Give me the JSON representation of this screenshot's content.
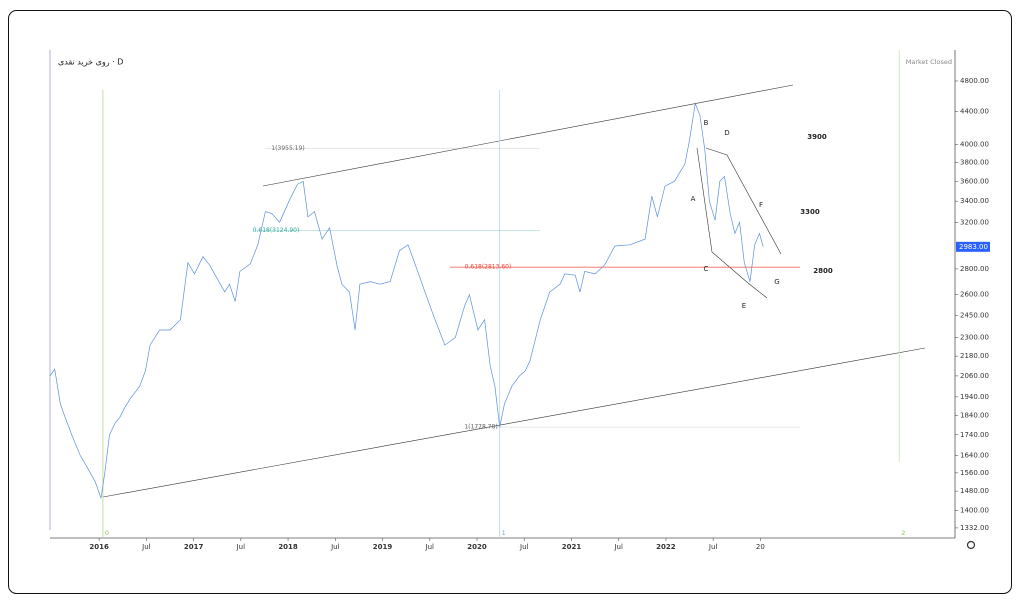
{
  "chart_data": {
    "type": "line",
    "title": "روی خرید نقدی · D",
    "status": "Market Closed",
    "log_scale": true,
    "grid": false,
    "xlim": [
      2015.48,
      2025.06
    ],
    "ylim": [
      1294,
      5246
    ],
    "xticks": [
      2016,
      {
        "value": 2016.5,
        "label": "Jul"
      },
      2017,
      {
        "value": 2017.5,
        "label": "Jul"
      },
      2018,
      {
        "value": 2018.5,
        "label": "Jul"
      },
      2019,
      {
        "value": 2019.5,
        "label": "Jul"
      },
      2020,
      {
        "value": 2020.5,
        "label": "Jul"
      },
      2021,
      {
        "value": 2021.5,
        "label": "Jul"
      },
      2022,
      {
        "value": 2022.5,
        "label": "Jul"
      },
      {
        "value": 2023,
        "label": "20"
      }
    ],
    "yticks": [
      {
        "value": 4800,
        "label": "4800.00"
      },
      {
        "value": 4400,
        "label": "4400.00"
      },
      {
        "value": 4000,
        "label": "4000.00"
      },
      {
        "value": 3800,
        "label": "3800.00"
      },
      {
        "value": 3600,
        "label": "3600.00"
      },
      {
        "value": 3400,
        "label": "3400.00"
      },
      {
        "value": 3200,
        "label": "3200.00"
      },
      {
        "value": 2800,
        "label": "2800.00"
      },
      {
        "value": 2600,
        "label": "2600.00"
      },
      {
        "value": 2450,
        "label": "2450.00"
      },
      {
        "value": 2300,
        "label": "2300.00"
      },
      {
        "value": 2180,
        "label": "2180.00"
      },
      {
        "value": 2060,
        "label": "2060.00"
      },
      {
        "value": 1940,
        "label": "1940.00"
      },
      {
        "value": 1840,
        "label": "1840.00"
      },
      {
        "value": 1740,
        "label": "1740.00"
      },
      {
        "value": 1640,
        "label": "1640.00"
      },
      {
        "value": 1560,
        "label": "1560.00"
      },
      {
        "value": 1480,
        "label": "1480.00"
      },
      {
        "value": 1400,
        "label": "1400.00"
      },
      {
        "value": 1332,
        "label": "1332.00"
      }
    ],
    "x": [
      2015.48,
      2015.53,
      2015.59,
      2015.64,
      2015.71,
      2015.8,
      2015.88,
      2015.96,
      2016.02,
      2016.06,
      2016.11,
      2016.17,
      2016.22,
      2016.27,
      2016.33,
      2016.43,
      2016.49,
      2016.54,
      2016.64,
      2016.75,
      2016.86,
      2016.94,
      2017.01,
      2017.1,
      2017.17,
      2017.23,
      2017.33,
      2017.38,
      2017.44,
      2017.49,
      2017.6,
      2017.68,
      2017.76,
      2017.83,
      2017.91,
      2018.02,
      2018.1,
      2018.16,
      2018.21,
      2018.28,
      2018.36,
      2018.44,
      2018.52,
      2018.57,
      2018.65,
      2018.71,
      2018.76,
      2018.87,
      2018.97,
      2019.08,
      2019.18,
      2019.27,
      2019.34,
      2019.45,
      2019.55,
      2019.66,
      2019.77,
      2019.87,
      2019.92,
      2020.01,
      2020.08,
      2020.14,
      2020.19,
      2020.24,
      2020.29,
      2020.37,
      2020.45,
      2020.51,
      2020.56,
      2020.67,
      2020.77,
      2020.88,
      2020.93,
      2021.04,
      2021.09,
      2021.14,
      2021.25,
      2021.35,
      2021.46,
      2021.62,
      2021.78,
      2021.85,
      2021.91,
      2021.99,
      2022.09,
      2022.2,
      2022.25,
      2022.31,
      2022.36,
      2022.41,
      2022.46,
      2022.52,
      2022.57,
      2022.62,
      2022.68,
      2022.73,
      2022.78,
      2022.83,
      2022.89,
      2022.94,
      2022.99,
      2023.03
    ],
    "series": [
      {
        "color": "#5b8fe0",
        "values": [
          2060,
          2100,
          1900,
          1830,
          1740,
          1640,
          1580,
          1520,
          1450,
          1560,
          1740,
          1800,
          1830,
          1880,
          1930,
          2000,
          2090,
          2250,
          2350,
          2350,
          2420,
          2850,
          2760,
          2900,
          2830,
          2750,
          2620,
          2680,
          2550,
          2780,
          2840,
          3000,
          3300,
          3280,
          3200,
          3420,
          3570,
          3600,
          3250,
          3300,
          3050,
          3150,
          2820,
          2680,
          2620,
          2350,
          2680,
          2700,
          2680,
          2700,
          2950,
          3000,
          2850,
          2620,
          2430,
          2250,
          2300,
          2520,
          2600,
          2350,
          2420,
          2120,
          2000,
          1779,
          1900,
          2000,
          2060,
          2090,
          2150,
          2420,
          2620,
          2680,
          2760,
          2750,
          2620,
          2780,
          2760,
          2830,
          2990,
          3000,
          3050,
          3450,
          3250,
          3550,
          3600,
          3780,
          4050,
          4500,
          4350,
          3950,
          3400,
          3220,
          3600,
          3650,
          3280,
          3100,
          3200,
          2850,
          2700,
          3000,
          3100,
          2983
        ]
      }
    ],
    "last_price": {
      "value": 2983,
      "label": "2983.00",
      "color": "#2962ff"
    },
    "levels": [
      {
        "value": 3955.19,
        "label": "1(3955.19)",
        "color": "#9e9e9e"
      },
      {
        "value": 3124.9,
        "label": "0.618(3124.90)",
        "color": "#26a69a"
      },
      {
        "value": 2813.6,
        "label": "0.618(2813.60)",
        "color": "#f44336"
      },
      {
        "value": 1778.78,
        "label": "1(1778.78)",
        "color": "#9e9e9e"
      }
    ],
    "markers": [
      {
        "x": 2016.04,
        "label": "0",
        "color": "#b7d98a"
      },
      {
        "x": 2020.24,
        "label": "1",
        "color": "#b3d4f0"
      },
      {
        "x": 2024.47,
        "label": "2",
        "color": "#c8e6b0"
      }
    ],
    "annotations": [
      "B",
      "D",
      "A",
      "F",
      "C",
      "G",
      "E",
      "3900",
      "3300",
      "2800"
    ]
  }
}
